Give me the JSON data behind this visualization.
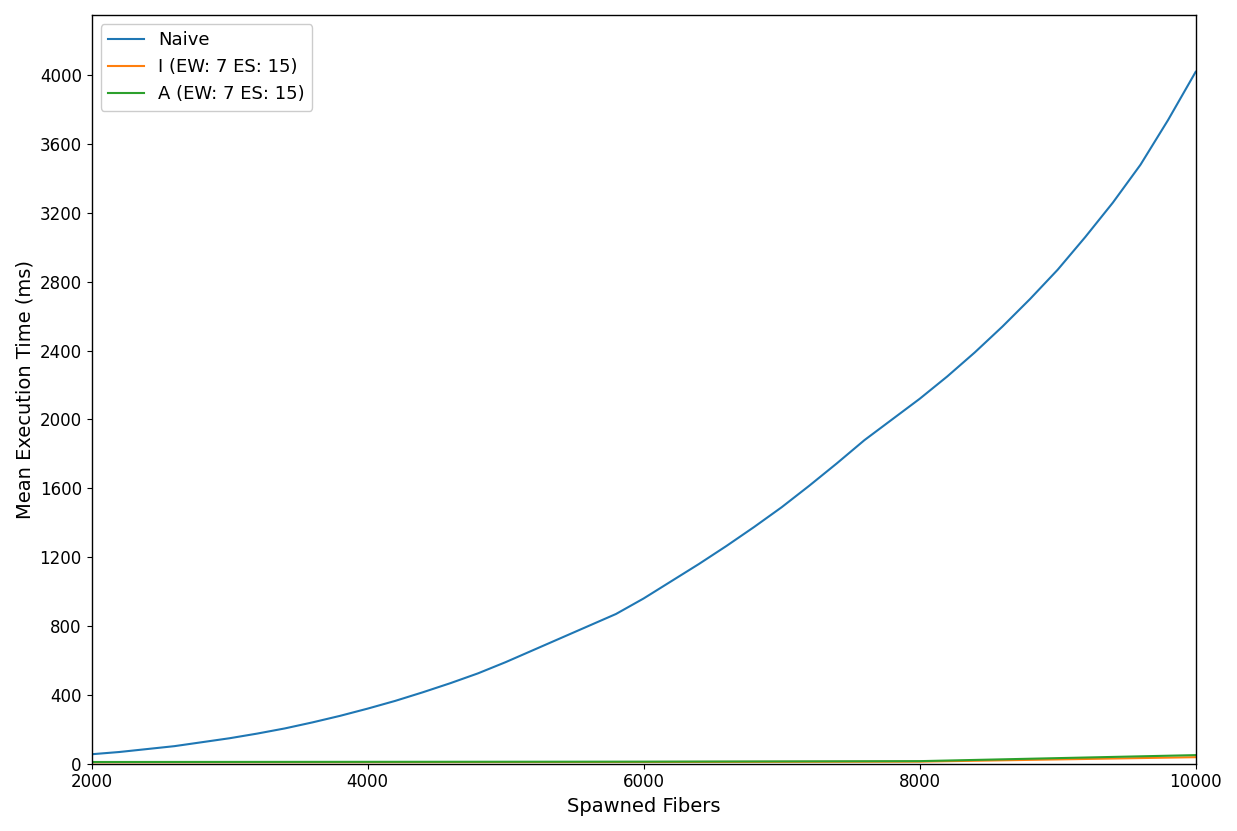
{
  "title": "",
  "xlabel": "Spawned Fibers",
  "ylabel": "Mean Execution Time (ms)",
  "xlim": [
    2000,
    10000
  ],
  "ylim": [
    0,
    4350
  ],
  "yticks": [
    0,
    400,
    800,
    1200,
    1600,
    2000,
    2400,
    2800,
    3200,
    3600,
    4000
  ],
  "xticks": [
    2000,
    4000,
    6000,
    8000,
    10000
  ],
  "series": [
    {
      "label": "Naive",
      "color": "#1f77b4",
      "x": [
        2000,
        2200,
        2400,
        2600,
        2800,
        3000,
        3200,
        3400,
        3600,
        3800,
        4000,
        4200,
        4400,
        4600,
        4800,
        5000,
        5200,
        5400,
        5600,
        5800,
        6000,
        6200,
        6400,
        6600,
        6800,
        7000,
        7200,
        7400,
        7600,
        7800,
        8000,
        8200,
        8400,
        8600,
        8800,
        9000,
        9200,
        9400,
        9600,
        9800,
        10000
      ],
      "y": [
        55,
        68,
        85,
        102,
        125,
        148,
        175,
        205,
        240,
        278,
        320,
        365,
        415,
        468,
        525,
        590,
        660,
        730,
        800,
        870,
        960,
        1060,
        1160,
        1265,
        1375,
        1490,
        1615,
        1745,
        1880,
        2000,
        2120,
        2250,
        2390,
        2540,
        2700,
        2870,
        3060,
        3260,
        3480,
        3740,
        4020
      ]
    },
    {
      "label": "I (EW: 7 ES: 15)",
      "color": "#ff7f0e",
      "x": [
        2000,
        4000,
        6000,
        8000,
        10000
      ],
      "y": [
        8,
        9,
        10,
        12,
        38
      ]
    },
    {
      "label": "A (EW: 7 ES: 15)",
      "color": "#2ca02c",
      "x": [
        2000,
        4000,
        6000,
        8000,
        10000
      ],
      "y": [
        10,
        11,
        12,
        15,
        50
      ]
    }
  ],
  "legend_loc": "upper left",
  "figsize": [
    12.37,
    8.31
  ],
  "dpi": 100
}
